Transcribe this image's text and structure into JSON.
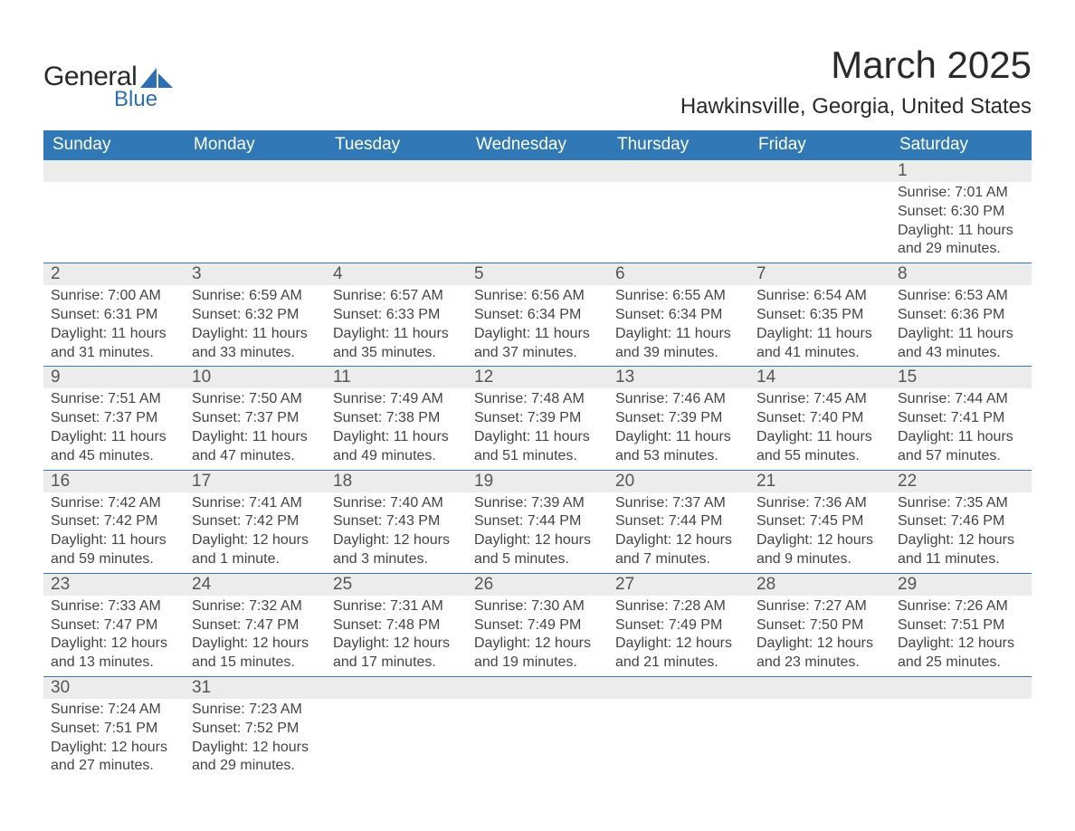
{
  "brand": {
    "line1": "General",
    "line2": "Blue",
    "accent_color": "#2c6fb3"
  },
  "title": "March 2025",
  "location": "Hawkinsville, Georgia, United States",
  "colors": {
    "header_bg": "#3079b6",
    "header_text": "#ffffff",
    "daynum_bg": "#ececec",
    "body_text": "#444444",
    "rule": "#3079b6"
  },
  "fonts": {
    "title_pt": 42,
    "location_pt": 24,
    "header_pt": 19,
    "cell_pt": 16
  },
  "weekdays": [
    "Sunday",
    "Monday",
    "Tuesday",
    "Wednesday",
    "Thursday",
    "Friday",
    "Saturday"
  ],
  "weeks": [
    [
      null,
      null,
      null,
      null,
      null,
      null,
      {
        "n": "1",
        "sr": "Sunrise: 7:01 AM",
        "ss": "Sunset: 6:30 PM",
        "d1": "Daylight: 11 hours",
        "d2": "and 29 minutes."
      }
    ],
    [
      {
        "n": "2",
        "sr": "Sunrise: 7:00 AM",
        "ss": "Sunset: 6:31 PM",
        "d1": "Daylight: 11 hours",
        "d2": "and 31 minutes."
      },
      {
        "n": "3",
        "sr": "Sunrise: 6:59 AM",
        "ss": "Sunset: 6:32 PM",
        "d1": "Daylight: 11 hours",
        "d2": "and 33 minutes."
      },
      {
        "n": "4",
        "sr": "Sunrise: 6:57 AM",
        "ss": "Sunset: 6:33 PM",
        "d1": "Daylight: 11 hours",
        "d2": "and 35 minutes."
      },
      {
        "n": "5",
        "sr": "Sunrise: 6:56 AM",
        "ss": "Sunset: 6:34 PM",
        "d1": "Daylight: 11 hours",
        "d2": "and 37 minutes."
      },
      {
        "n": "6",
        "sr": "Sunrise: 6:55 AM",
        "ss": "Sunset: 6:34 PM",
        "d1": "Daylight: 11 hours",
        "d2": "and 39 minutes."
      },
      {
        "n": "7",
        "sr": "Sunrise: 6:54 AM",
        "ss": "Sunset: 6:35 PM",
        "d1": "Daylight: 11 hours",
        "d2": "and 41 minutes."
      },
      {
        "n": "8",
        "sr": "Sunrise: 6:53 AM",
        "ss": "Sunset: 6:36 PM",
        "d1": "Daylight: 11 hours",
        "d2": "and 43 minutes."
      }
    ],
    [
      {
        "n": "9",
        "sr": "Sunrise: 7:51 AM",
        "ss": "Sunset: 7:37 PM",
        "d1": "Daylight: 11 hours",
        "d2": "and 45 minutes."
      },
      {
        "n": "10",
        "sr": "Sunrise: 7:50 AM",
        "ss": "Sunset: 7:37 PM",
        "d1": "Daylight: 11 hours",
        "d2": "and 47 minutes."
      },
      {
        "n": "11",
        "sr": "Sunrise: 7:49 AM",
        "ss": "Sunset: 7:38 PM",
        "d1": "Daylight: 11 hours",
        "d2": "and 49 minutes."
      },
      {
        "n": "12",
        "sr": "Sunrise: 7:48 AM",
        "ss": "Sunset: 7:39 PM",
        "d1": "Daylight: 11 hours",
        "d2": "and 51 minutes."
      },
      {
        "n": "13",
        "sr": "Sunrise: 7:46 AM",
        "ss": "Sunset: 7:39 PM",
        "d1": "Daylight: 11 hours",
        "d2": "and 53 minutes."
      },
      {
        "n": "14",
        "sr": "Sunrise: 7:45 AM",
        "ss": "Sunset: 7:40 PM",
        "d1": "Daylight: 11 hours",
        "d2": "and 55 minutes."
      },
      {
        "n": "15",
        "sr": "Sunrise: 7:44 AM",
        "ss": "Sunset: 7:41 PM",
        "d1": "Daylight: 11 hours",
        "d2": "and 57 minutes."
      }
    ],
    [
      {
        "n": "16",
        "sr": "Sunrise: 7:42 AM",
        "ss": "Sunset: 7:42 PM",
        "d1": "Daylight: 11 hours",
        "d2": "and 59 minutes."
      },
      {
        "n": "17",
        "sr": "Sunrise: 7:41 AM",
        "ss": "Sunset: 7:42 PM",
        "d1": "Daylight: 12 hours",
        "d2": "and 1 minute."
      },
      {
        "n": "18",
        "sr": "Sunrise: 7:40 AM",
        "ss": "Sunset: 7:43 PM",
        "d1": "Daylight: 12 hours",
        "d2": "and 3 minutes."
      },
      {
        "n": "19",
        "sr": "Sunrise: 7:39 AM",
        "ss": "Sunset: 7:44 PM",
        "d1": "Daylight: 12 hours",
        "d2": "and 5 minutes."
      },
      {
        "n": "20",
        "sr": "Sunrise: 7:37 AM",
        "ss": "Sunset: 7:44 PM",
        "d1": "Daylight: 12 hours",
        "d2": "and 7 minutes."
      },
      {
        "n": "21",
        "sr": "Sunrise: 7:36 AM",
        "ss": "Sunset: 7:45 PM",
        "d1": "Daylight: 12 hours",
        "d2": "and 9 minutes."
      },
      {
        "n": "22",
        "sr": "Sunrise: 7:35 AM",
        "ss": "Sunset: 7:46 PM",
        "d1": "Daylight: 12 hours",
        "d2": "and 11 minutes."
      }
    ],
    [
      {
        "n": "23",
        "sr": "Sunrise: 7:33 AM",
        "ss": "Sunset: 7:47 PM",
        "d1": "Daylight: 12 hours",
        "d2": "and 13 minutes."
      },
      {
        "n": "24",
        "sr": "Sunrise: 7:32 AM",
        "ss": "Sunset: 7:47 PM",
        "d1": "Daylight: 12 hours",
        "d2": "and 15 minutes."
      },
      {
        "n": "25",
        "sr": "Sunrise: 7:31 AM",
        "ss": "Sunset: 7:48 PM",
        "d1": "Daylight: 12 hours",
        "d2": "and 17 minutes."
      },
      {
        "n": "26",
        "sr": "Sunrise: 7:30 AM",
        "ss": "Sunset: 7:49 PM",
        "d1": "Daylight: 12 hours",
        "d2": "and 19 minutes."
      },
      {
        "n": "27",
        "sr": "Sunrise: 7:28 AM",
        "ss": "Sunset: 7:49 PM",
        "d1": "Daylight: 12 hours",
        "d2": "and 21 minutes."
      },
      {
        "n": "28",
        "sr": "Sunrise: 7:27 AM",
        "ss": "Sunset: 7:50 PM",
        "d1": "Daylight: 12 hours",
        "d2": "and 23 minutes."
      },
      {
        "n": "29",
        "sr": "Sunrise: 7:26 AM",
        "ss": "Sunset: 7:51 PM",
        "d1": "Daylight: 12 hours",
        "d2": "and 25 minutes."
      }
    ],
    [
      {
        "n": "30",
        "sr": "Sunrise: 7:24 AM",
        "ss": "Sunset: 7:51 PM",
        "d1": "Daylight: 12 hours",
        "d2": "and 27 minutes."
      },
      {
        "n": "31",
        "sr": "Sunrise: 7:23 AM",
        "ss": "Sunset: 7:52 PM",
        "d1": "Daylight: 12 hours",
        "d2": "and 29 minutes."
      },
      null,
      null,
      null,
      null,
      null
    ]
  ]
}
